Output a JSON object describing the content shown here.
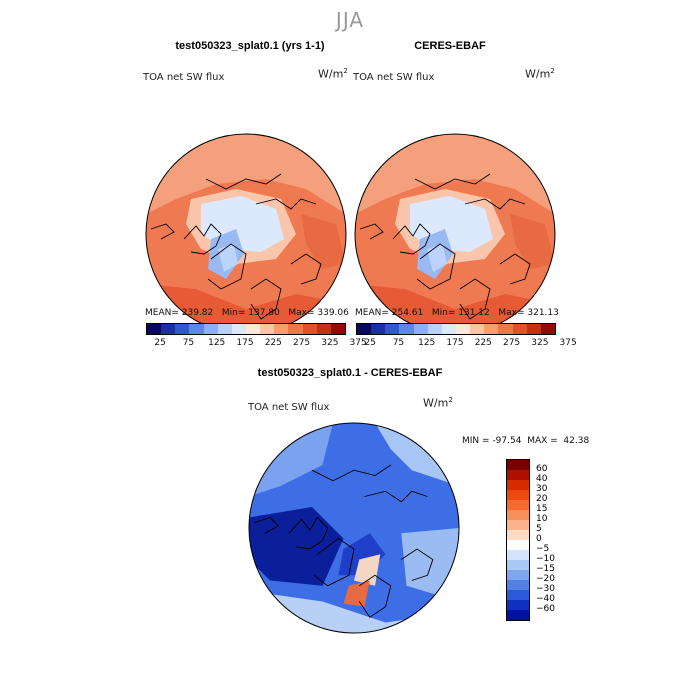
{
  "season": "JJA",
  "chart_data": [
    {
      "type": "heatmap",
      "projection": "north polar stereographic",
      "title": "test050323_splat0.1 (yrs 1-1)",
      "variable": "TOA net SW flux",
      "units": "W/m",
      "units_exp": "2",
      "stats": {
        "mean_label": "MEAN=",
        "mean": "239.82",
        "min_label": "Min=",
        "min": "137.80",
        "max_label": "Max=",
        "max": "339.06"
      },
      "colorbar": {
        "ticks": [
          "25",
          "75",
          "125",
          "175",
          "225",
          "275",
          "325",
          "375"
        ],
        "colors": [
          "#08085e",
          "#1c2ea8",
          "#2f58d3",
          "#5b86ec",
          "#8bb0f5",
          "#b9d2fa",
          "#dce9fd",
          "#fde8db",
          "#fbc5a8",
          "#f79c76",
          "#f1764f",
          "#e2502f",
          "#c6301a",
          "#8f0d06"
        ]
      }
    },
    {
      "type": "heatmap",
      "projection": "north polar stereographic",
      "title": "CERES-EBAF",
      "variable": "TOA net SW flux",
      "units": "W/m",
      "units_exp": "2",
      "stats": {
        "mean_label": "MEAN=",
        "mean": "254.61",
        "min_label": "Min=",
        "min": "131.12",
        "max_label": "Max=",
        "max": "321.13"
      },
      "colorbar": {
        "ticks": [
          "25",
          "75",
          "125",
          "175",
          "225",
          "275",
          "325",
          "375"
        ],
        "colors": [
          "#08085e",
          "#1c2ea8",
          "#2f58d3",
          "#5b86ec",
          "#8bb0f5",
          "#b9d2fa",
          "#dce9fd",
          "#fde8db",
          "#fbc5a8",
          "#f79c76",
          "#f1764f",
          "#e2502f",
          "#c6301a",
          "#8f0d06"
        ]
      }
    },
    {
      "type": "heatmap",
      "projection": "north polar stereographic",
      "title": "test050323_splat0.1 - CERES-EBAF",
      "variable": "TOA net SW flux",
      "units": "W/m",
      "units_exp": "2",
      "stats": {
        "min_label": "MIN =",
        "min": "-97.54",
        "max_label": "MAX =",
        "max": "42.38"
      },
      "colorbar": {
        "ticks": [
          "60",
          "40",
          "30",
          "20",
          "15",
          "10",
          "5",
          "0",
          "−5",
          "−10",
          "−15",
          "−20",
          "−30",
          "−40",
          "−60"
        ],
        "colors": [
          "#7a0000",
          "#b01000",
          "#d62a00",
          "#ee4a10",
          "#f66a32",
          "#f8905e",
          "#fab48e",
          "#fddac4",
          "#ffffff",
          "#d2e4fb",
          "#a8c8f5",
          "#7ea6ee",
          "#5380e6",
          "#2c58da",
          "#1030c0",
          "#0010a0"
        ]
      }
    }
  ]
}
